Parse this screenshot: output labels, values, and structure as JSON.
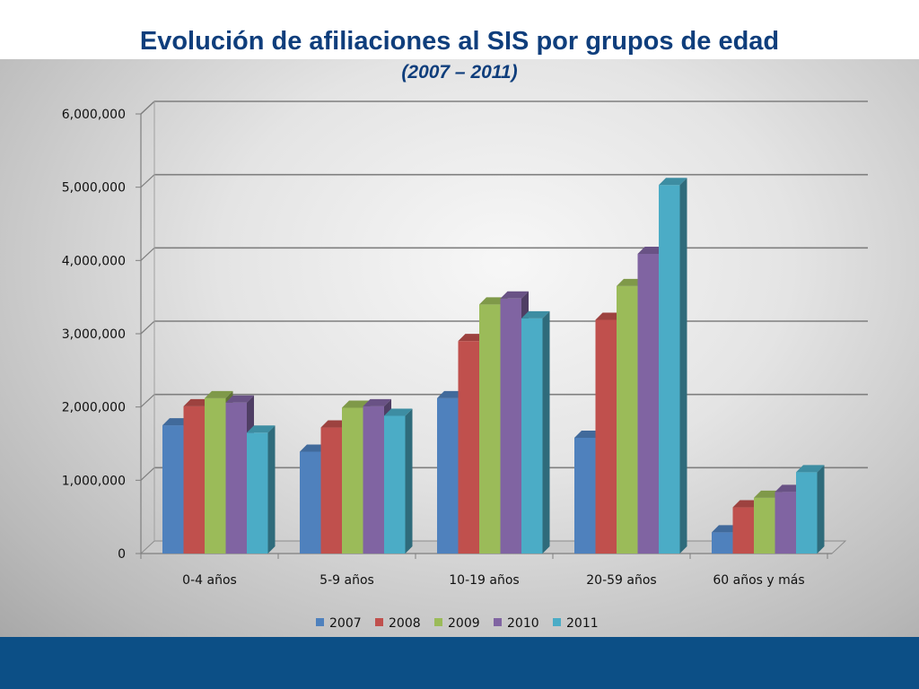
{
  "slide": {
    "title": "Evolución de afiliaciones al SIS por grupos de edad",
    "subtitle": "(2007 – 2011)"
  },
  "chart_data": {
    "type": "bar",
    "title": "",
    "xlabel": "",
    "ylabel": "",
    "ylim": [
      0,
      6000000
    ],
    "yticks": [
      0,
      1000000,
      2000000,
      3000000,
      4000000,
      5000000,
      6000000
    ],
    "ytick_labels": [
      "0",
      "1,000,000",
      "2,000,000",
      "3,000,000",
      "4,000,000",
      "5,000,000",
      "6,000,000"
    ],
    "grid": true,
    "legend_position": "bottom",
    "style": "3d-clustered-column",
    "categories": [
      "0-4 años",
      "5-9 años",
      "10-19 años",
      "20-59 años",
      "60 años y más"
    ],
    "series": [
      {
        "name": "2007",
        "color": "#4f81bd",
        "values": [
          1750000,
          1390000,
          2120000,
          1580000,
          290000
        ]
      },
      {
        "name": "2008",
        "color": "#c0504d",
        "values": [
          2010000,
          1720000,
          2900000,
          3190000,
          630000
        ]
      },
      {
        "name": "2009",
        "color": "#9bbb59",
        "values": [
          2120000,
          1990000,
          3400000,
          3650000,
          760000
        ]
      },
      {
        "name": "2010",
        "color": "#8064a2",
        "values": [
          2060000,
          2010000,
          3480000,
          4090000,
          840000
        ]
      },
      {
        "name": "2011",
        "color": "#4bacc6",
        "values": [
          1650000,
          1880000,
          3210000,
          5030000,
          1110000
        ]
      }
    ]
  }
}
